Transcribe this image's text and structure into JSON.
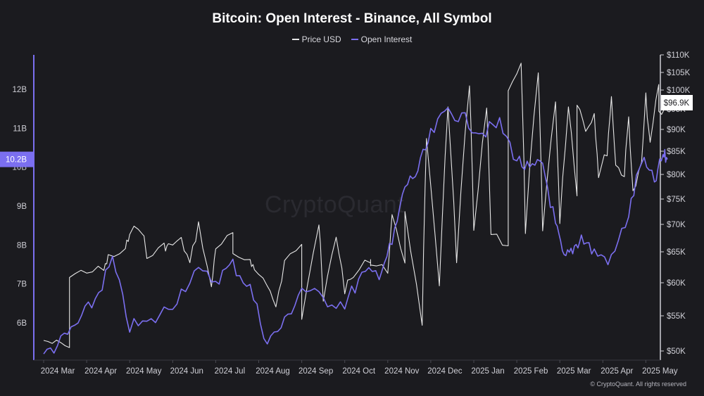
{
  "chart_data": {
    "type": "line",
    "title": "Bitcoin: Open Interest - Binance, All Symbol",
    "legend_position": "top-center",
    "grid": false,
    "x_labels": [
      "2024 Mar",
      "2024 Apr",
      "2024 May",
      "2024 Jun",
      "2024 Jul",
      "2024 Aug",
      "2024 Sep",
      "2024 Oct",
      "2024 Nov",
      "2024 Dec",
      "2025 Jan",
      "2025 Feb",
      "2025 Mar",
      "2025 Apr",
      "2025 May"
    ],
    "left_axis": {
      "ticks": [
        "12B",
        "11B",
        "10B",
        "9B",
        "8B",
        "7B",
        "6B"
      ],
      "tick_values": [
        12,
        11,
        10,
        9,
        8,
        7,
        6
      ],
      "range": [
        5.0,
        12.9
      ],
      "current_value_tag": "10.2B",
      "current_value": 10.2
    },
    "right_axis": {
      "ticks": [
        "$110K",
        "$105K",
        "$100K",
        "$95K",
        "$90K",
        "$85K",
        "$80K",
        "$75K",
        "$70K",
        "$65K",
        "$60K",
        "$55K",
        "$50K"
      ],
      "tick_values": [
        110,
        105,
        100,
        95,
        90,
        85,
        80,
        75,
        70,
        65,
        60,
        55,
        50
      ],
      "current_value_tag": "$96.9K",
      "current_value": 96.9
    },
    "series": [
      {
        "name": "Price USD",
        "axis": "right",
        "color": "#e6e6e6",
        "x": [
          0,
          0.3,
          0.6,
          1,
          1.5,
          2,
          2.4,
          2.8,
          3.2,
          3.6,
          4,
          4.4,
          4.8,
          5.2,
          5.6,
          6,
          6.4,
          6.8,
          7.2,
          7.6,
          8,
          8.4,
          8.8,
          9.2,
          9.6,
          10,
          10.4,
          10.8,
          11.2,
          11.6,
          12,
          12.4,
          12.8,
          13.2,
          13.6,
          14,
          14.3,
          14.5
        ],
        "values": [
          51.5,
          51,
          50.5,
          62,
          64,
          69,
          64,
          66,
          67,
          70,
          66,
          68,
          64,
          60,
          63,
          67,
          70,
          68,
          61,
          64,
          62,
          63.5,
          53,
          59,
          63,
          68,
          68,
          66,
          69,
          69,
          70,
          76,
          94,
          98,
          93,
          98,
          102,
          96
        ],
        "fill_values": [
          61,
          62,
          65,
          69,
          66,
          63,
          59,
          64,
          62,
          56,
          55,
          57,
          59,
          63,
          71,
          72,
          88,
          95,
          102,
          95,
          101,
          107,
          104,
          97,
          96,
          97,
          90,
          80,
          85,
          82,
          80,
          76,
          82,
          86,
          94,
          96.9
        ],
        "fill_x": [
          0.6,
          1.4,
          1.9,
          2.3,
          2.9,
          3.4,
          3.9,
          4.4,
          4.9,
          5.4,
          6.0,
          6.5,
          7.0,
          7.6,
          8.1,
          8.4,
          8.9,
          9.4,
          9.9,
          10.3,
          10.8,
          11.1,
          11.5,
          11.9,
          12.2,
          12.4,
          12.6,
          12.9,
          13.1,
          13.3,
          13.5,
          13.7,
          13.9,
          14.1,
          14.3,
          14.5
        ]
      },
      {
        "name": "Open Interest",
        "axis": "left",
        "color": "#7b6ff0",
        "x": [
          0,
          0.4,
          0.8,
          1.2,
          1.6,
          2.0,
          2.5,
          3.0,
          3.5,
          4.0,
          4.4,
          4.8,
          5.2,
          5.6,
          6.0,
          6.5,
          7.0,
          7.4,
          7.8,
          8.1,
          8.4,
          8.7,
          9.0,
          9.4,
          9.8,
          10.2,
          10.6,
          11.0,
          11.3,
          11.6,
          11.9,
          12.1,
          12.3,
          12.5,
          12.8,
          13.2,
          13.6,
          13.9,
          14.2,
          14.4,
          14.5
        ],
        "values": [
          5.2,
          5.5,
          6.0,
          6.6,
          7.6,
          5.9,
          6.0,
          6.5,
          7.3,
          7.1,
          7.5,
          6.9,
          5.5,
          6.0,
          6.9,
          6.6,
          6.5,
          7.2,
          7.3,
          8.0,
          9.5,
          9.9,
          10.8,
          11.5,
          11.2,
          10.9,
          11.1,
          10.2,
          9.9,
          10.1,
          8.5,
          7.6,
          7.9,
          8.2,
          7.8,
          7.6,
          8.8,
          10.2,
          9.6,
          10.3,
          10.2
        ]
      }
    ]
  },
  "legend": {
    "price_label": "Price USD",
    "oi_label": "Open Interest"
  },
  "watermark": "CryptoQuant",
  "copyright": "© CryptoQuant. All rights reserved"
}
